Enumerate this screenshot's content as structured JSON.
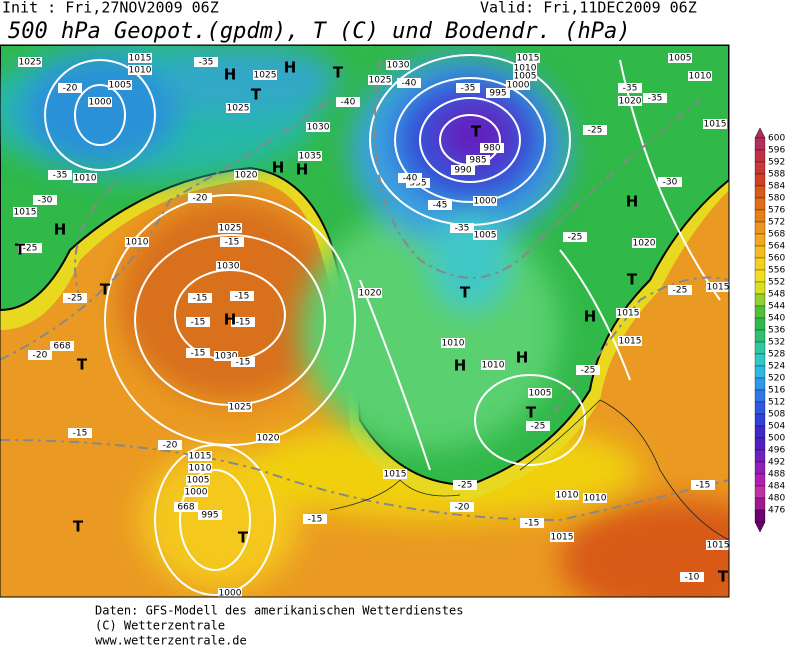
{
  "header": {
    "init": "Init : Fri,27NOV2009 06Z",
    "valid": "Valid: Fri,11DEC2009 06Z",
    "title": "500 hPa Geopot.(gpdm), T (C) und Bodendr. (hPa)"
  },
  "map_labels": [
    "1025",
    "1015",
    "1010",
    "1005",
    "1000",
    "1010",
    "1015",
    "1010",
    "1025",
    "1025",
    "1030",
    "1035",
    "1020",
    "1025",
    "1030",
    "1030",
    "1025",
    "1020",
    "1015",
    "1010",
    "1005",
    "1000",
    "995",
    "1030",
    "1025",
    "1015",
    "1010",
    "1005",
    "1000",
    "995",
    "980",
    "985",
    "990",
    "995",
    "1000",
    "1005",
    "1020",
    "1010",
    "1010",
    "1005",
    "1015",
    "1010",
    "1010",
    "1015",
    "1020",
    "1020",
    "1015",
    "1015",
    "1005",
    "1010",
    "1015",
    "1015",
    "1015",
    "1000",
    "-35",
    "-20",
    "-35",
    "-30",
    "-25",
    "-25",
    "-20",
    "-20",
    "-15",
    "-15",
    "-15",
    "-15",
    "-15",
    "-15",
    "-15",
    "-15",
    "-20",
    "-15",
    "-20",
    "-25",
    "-15",
    "-25",
    "-25",
    "-25",
    "-25",
    "-30",
    "-25",
    "-35",
    "-35",
    "-40",
    "-40",
    "-35",
    "-40",
    "-45",
    "-35",
    "-15",
    "-10",
    "H",
    "H",
    "T",
    "T",
    "H",
    "H",
    "H",
    "T",
    "T",
    "H",
    "T",
    "T",
    "T",
    "H",
    "H",
    "H",
    "H",
    "T",
    "T",
    "T",
    "T",
    "T",
    "668",
    "668"
  ],
  "legend": {
    "values": [
      600,
      596,
      592,
      588,
      584,
      580,
      576,
      572,
      568,
      564,
      560,
      556,
      552,
      548,
      544,
      540,
      536,
      532,
      528,
      524,
      520,
      516,
      512,
      508,
      504,
      500,
      496,
      492,
      488,
      484,
      480,
      476
    ]
  },
  "footer": [
    "Daten: GFS-Modell des amerikanischen Wetterdienstes",
    "(C) Wetterzentrale",
    "www.wetterzentrale.de"
  ]
}
